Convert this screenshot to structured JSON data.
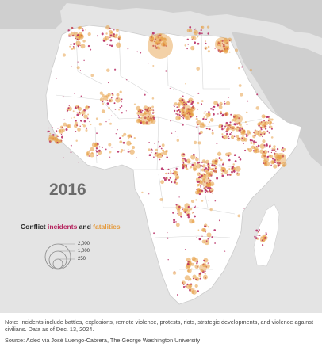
{
  "map": {
    "year": "2016",
    "colors": {
      "sea": "#e4e4e4",
      "land": "#ffffff",
      "outside_land": "#cfcfcf",
      "borders": "#d0d0d0",
      "incidents": "#b5245e",
      "fatalities": "#e59a3c"
    }
  },
  "legend": {
    "title_prefix": "Conflict ",
    "incidents_word": "incidents",
    "and_word": " and ",
    "fatalities_word": "fatalities",
    "values": [
      "2,000",
      "1,000",
      "250"
    ]
  },
  "footer": {
    "note": "Note: Incidents include battles, explosions, remote violence, protests, riots, strategic developments, and violence against civilians. Data as of Dec. 13, 2024.",
    "source": "Source: Acled via José Luengo-Cabrera, The George Washington University"
  }
}
